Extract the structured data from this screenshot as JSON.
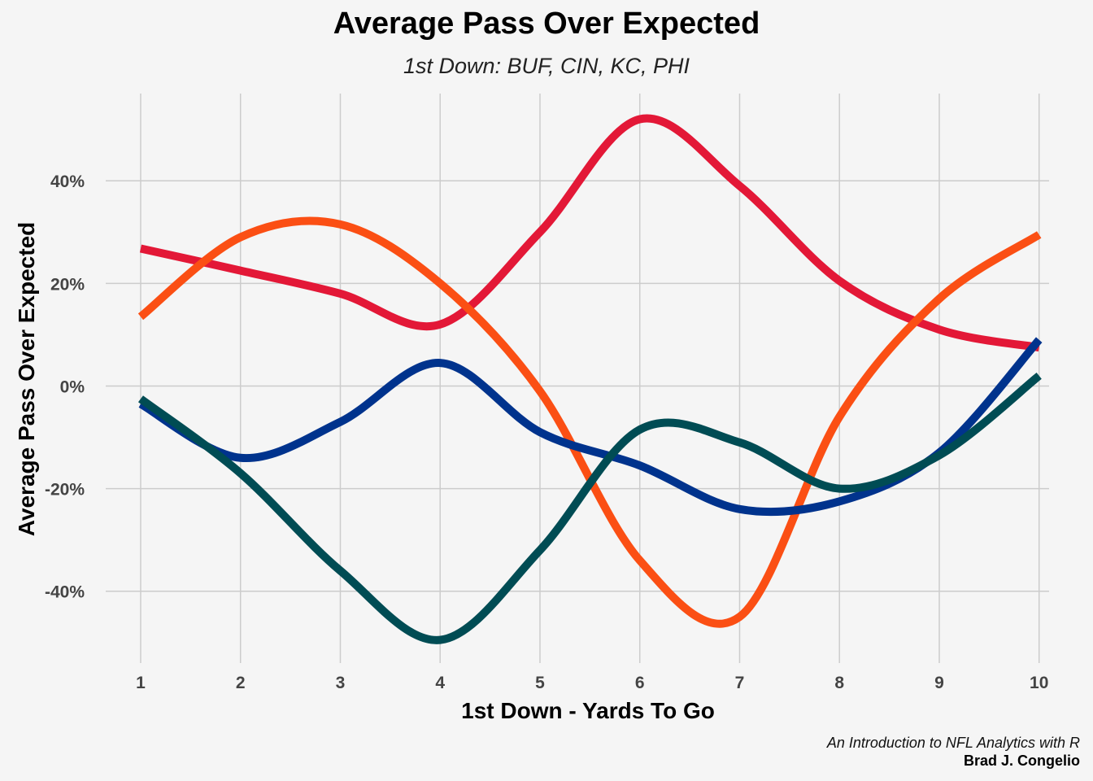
{
  "chart_data": {
    "type": "line",
    "title": "Average Pass Over Expected",
    "subtitle": "1st Down: BUF, CIN, KC, PHI",
    "xlabel": "1st Down - Yards To Go",
    "ylabel": "Average Pass Over Expected",
    "x": [
      1,
      2,
      3,
      4,
      5,
      6,
      7,
      8,
      9,
      10
    ],
    "x_ticks": [
      "1",
      "2",
      "3",
      "4",
      "5",
      "6",
      "7",
      "8",
      "9",
      "10"
    ],
    "y_ticks": [
      {
        "value": -40,
        "label": "-40%"
      },
      {
        "value": -20,
        "label": "-20%"
      },
      {
        "value": 0,
        "label": "0%"
      },
      {
        "value": 20,
        "label": "20%"
      },
      {
        "value": 40,
        "label": "40%"
      }
    ],
    "xlim": [
      0.65,
      10.1
    ],
    "ylim": [
      -54,
      57
    ],
    "grid": true,
    "legend": "none",
    "series": [
      {
        "color": "#E31837",
        "values": [
          26.8,
          22.5,
          18,
          12,
          30,
          52,
          39,
          20.5,
          11,
          7.5
        ]
      },
      {
        "color": "#FB4F14",
        "values": [
          13.5,
          29,
          31.5,
          20,
          -1,
          -34,
          -45,
          -6,
          17,
          29.5
        ]
      },
      {
        "color": "#00338D",
        "values": [
          -3.5,
          -14,
          -7,
          4.5,
          -9,
          -15.5,
          -24,
          -22.5,
          -13,
          9
        ]
      },
      {
        "color": "#004C54",
        "values": [
          -2.5,
          -17,
          -36,
          -49.5,
          -32,
          -8.5,
          -11,
          -20,
          -13.5,
          2
        ]
      }
    ]
  },
  "caption": {
    "line1": "An Introduction to NFL Analytics with R",
    "line2": "Brad J. Congelio"
  }
}
